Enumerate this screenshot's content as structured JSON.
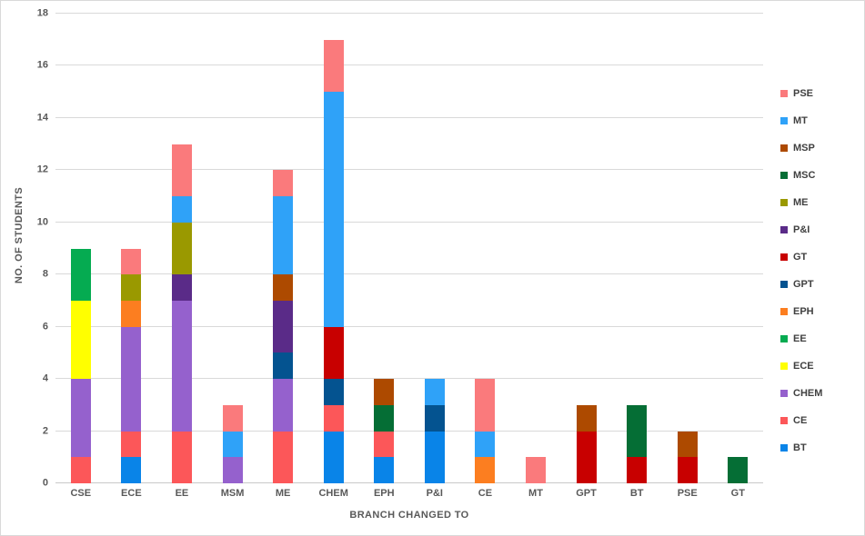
{
  "chart_data": {
    "type": "bar",
    "stacked": true,
    "title": "",
    "xlabel": "BRANCH CHANGED TO",
    "ylabel": "NO. OF STUDENTS",
    "categories": [
      "CSE",
      "ECE",
      "EE",
      "MSM",
      "ME",
      "CHEM",
      "EPH",
      "P&I",
      "CE",
      "MT",
      "GPT",
      "BT",
      "PSE",
      "GT"
    ],
    "series": [
      {
        "name": "BT",
        "color": "#0984e8",
        "values": [
          0,
          1,
          0,
          0,
          0,
          2,
          1,
          2,
          0,
          0,
          0,
          0,
          0,
          0
        ]
      },
      {
        "name": "CE",
        "color": "#fc5759",
        "values": [
          1,
          1,
          2,
          0,
          2,
          1,
          1,
          0,
          0,
          0,
          0,
          0,
          0,
          0
        ]
      },
      {
        "name": "CHEM",
        "color": "#9561cd",
        "values": [
          3,
          4,
          5,
          1,
          2,
          0,
          0,
          0,
          0,
          0,
          0,
          0,
          0,
          0
        ]
      },
      {
        "name": "ECE",
        "color": "#ffff00",
        "values": [
          3,
          0,
          0,
          0,
          0,
          0,
          0,
          0,
          0,
          0,
          0,
          0,
          0,
          0
        ]
      },
      {
        "name": "EE",
        "color": "#05ab51",
        "values": [
          2,
          0,
          0,
          0,
          0,
          0,
          0,
          0,
          0,
          0,
          0,
          0,
          0,
          0
        ]
      },
      {
        "name": "EPH",
        "color": "#fc7e20",
        "values": [
          0,
          1,
          0,
          0,
          0,
          0,
          0,
          0,
          1,
          0,
          0,
          0,
          0,
          0
        ]
      },
      {
        "name": "GPT",
        "color": "#045390",
        "values": [
          0,
          0,
          0,
          0,
          1,
          1,
          0,
          1,
          0,
          0,
          0,
          0,
          0,
          0
        ]
      },
      {
        "name": "GT",
        "color": "#c80000",
        "values": [
          0,
          0,
          0,
          0,
          0,
          2,
          0,
          0,
          0,
          0,
          2,
          1,
          1,
          0
        ]
      },
      {
        "name": "P&I",
        "color": "#5a2b88",
        "values": [
          0,
          0,
          1,
          0,
          2,
          0,
          0,
          0,
          0,
          0,
          0,
          0,
          0,
          0
        ]
      },
      {
        "name": "ME",
        "color": "#9a9900",
        "values": [
          0,
          1,
          2,
          0,
          0,
          0,
          0,
          0,
          0,
          0,
          0,
          0,
          0,
          0
        ]
      },
      {
        "name": "MSC",
        "color": "#056e35",
        "values": [
          0,
          0,
          0,
          0,
          0,
          0,
          1,
          0,
          0,
          0,
          0,
          2,
          0,
          1
        ]
      },
      {
        "name": "MSP",
        "color": "#ad4a00",
        "values": [
          0,
          0,
          0,
          0,
          1,
          0,
          1,
          0,
          0,
          0,
          1,
          0,
          1,
          0
        ]
      },
      {
        "name": "MT",
        "color": "#2fa2f8",
        "values": [
          0,
          0,
          1,
          1,
          3,
          9,
          0,
          1,
          1,
          0,
          0,
          0,
          0,
          0
        ]
      },
      {
        "name": "PSE",
        "color": "#fa7a7c",
        "values": [
          0,
          1,
          2,
          1,
          1,
          2,
          0,
          0,
          2,
          1,
          0,
          0,
          0,
          0
        ]
      }
    ],
    "category_totals": [
      9,
      9,
      13,
      3,
      12,
      17,
      4,
      4,
      4,
      1,
      3,
      3,
      2,
      1
    ],
    "ylim": [
      0,
      18
    ],
    "ytick_step": 2,
    "ytick_labels": [
      "0",
      "2",
      "4",
      "6",
      "8",
      "10",
      "12",
      "14",
      "16",
      "18"
    ],
    "grid": true,
    "legend_position": "right",
    "legend_order_top_to_bottom": [
      "PSE",
      "MT",
      "MSP",
      "MSC",
      "ME",
      "P&I",
      "GT",
      "GPT",
      "EPH",
      "EE",
      "ECE",
      "CHEM",
      "CE",
      "BT"
    ]
  },
  "styles": {
    "gridline_color": "#d9d9d9",
    "axis_text_color": "#595959",
    "legend_text_color": "#404040",
    "border_color": "#d9d9d9",
    "background_color": "#ffffff"
  }
}
